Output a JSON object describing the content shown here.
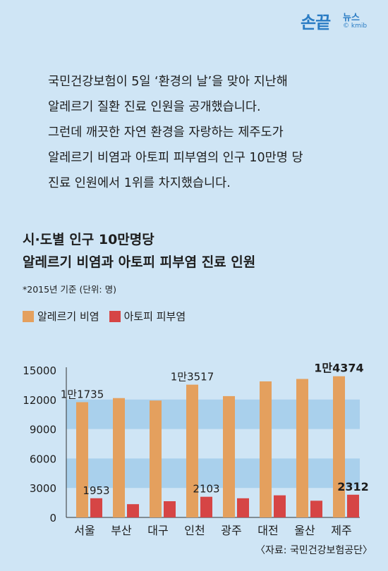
{
  "logo": {
    "main": "손끝",
    "sub": "뉴스",
    "kmib": "© kmib"
  },
  "intro": [
    "국민건강보험이 5일 ‘환경의 날’을 맞아 지난해",
    "알레르기 질환 진료 인원을 공개했습니다.",
    "그런데 깨끗한 자연 환경을 자랑하는 제주도가",
    "알레르기 비염과 아토피 피부염의 인구 10만명 당",
    "진료 인원에서 1위를 차지했습니다."
  ],
  "chart_title_lines": [
    "시·도별 인구 10만명당",
    "알레르기 비염과 아토피 피부염 진료 인원"
  ],
  "note": "*2015년 기준  (단위: 명)",
  "source": "〈자료: 국민건강보험공단〉",
  "colors": {
    "orange": "#e4a05e",
    "red": "#d64545",
    "band": "#a9d0ec"
  },
  "chart_data": {
    "type": "bar",
    "categories": [
      "서울",
      "부산",
      "대구",
      "인천",
      "광주",
      "대전",
      "울산",
      "제주"
    ],
    "series": [
      {
        "name": "알레르기 비염",
        "values": [
          11735,
          12150,
          11900,
          13517,
          12350,
          13850,
          14100,
          14374
        ]
      },
      {
        "name": "아토피 피부염",
        "values": [
          1953,
          1350,
          1650,
          2103,
          1950,
          2250,
          1700,
          2312
        ]
      }
    ],
    "ylim": [
      0,
      15000
    ],
    "yticks": [
      0,
      3000,
      6000,
      9000,
      12000,
      15000
    ],
    "ytick_labels": [
      "0",
      "3000",
      "6000",
      "9000",
      "12000",
      "15000"
    ],
    "data_labels": [
      {
        "text": "1만1735",
        "series": 0,
        "index": 0,
        "bold": false
      },
      {
        "text": "1만3517",
        "series": 0,
        "index": 3,
        "bold": false
      },
      {
        "text": "1만4374",
        "series": 0,
        "index": 7,
        "bold": true
      },
      {
        "text": "1953",
        "series": 1,
        "index": 0,
        "bold": false
      },
      {
        "text": "2103",
        "series": 1,
        "index": 3,
        "bold": false
      },
      {
        "text": "2312",
        "series": 1,
        "index": 7,
        "bold": true
      }
    ]
  }
}
